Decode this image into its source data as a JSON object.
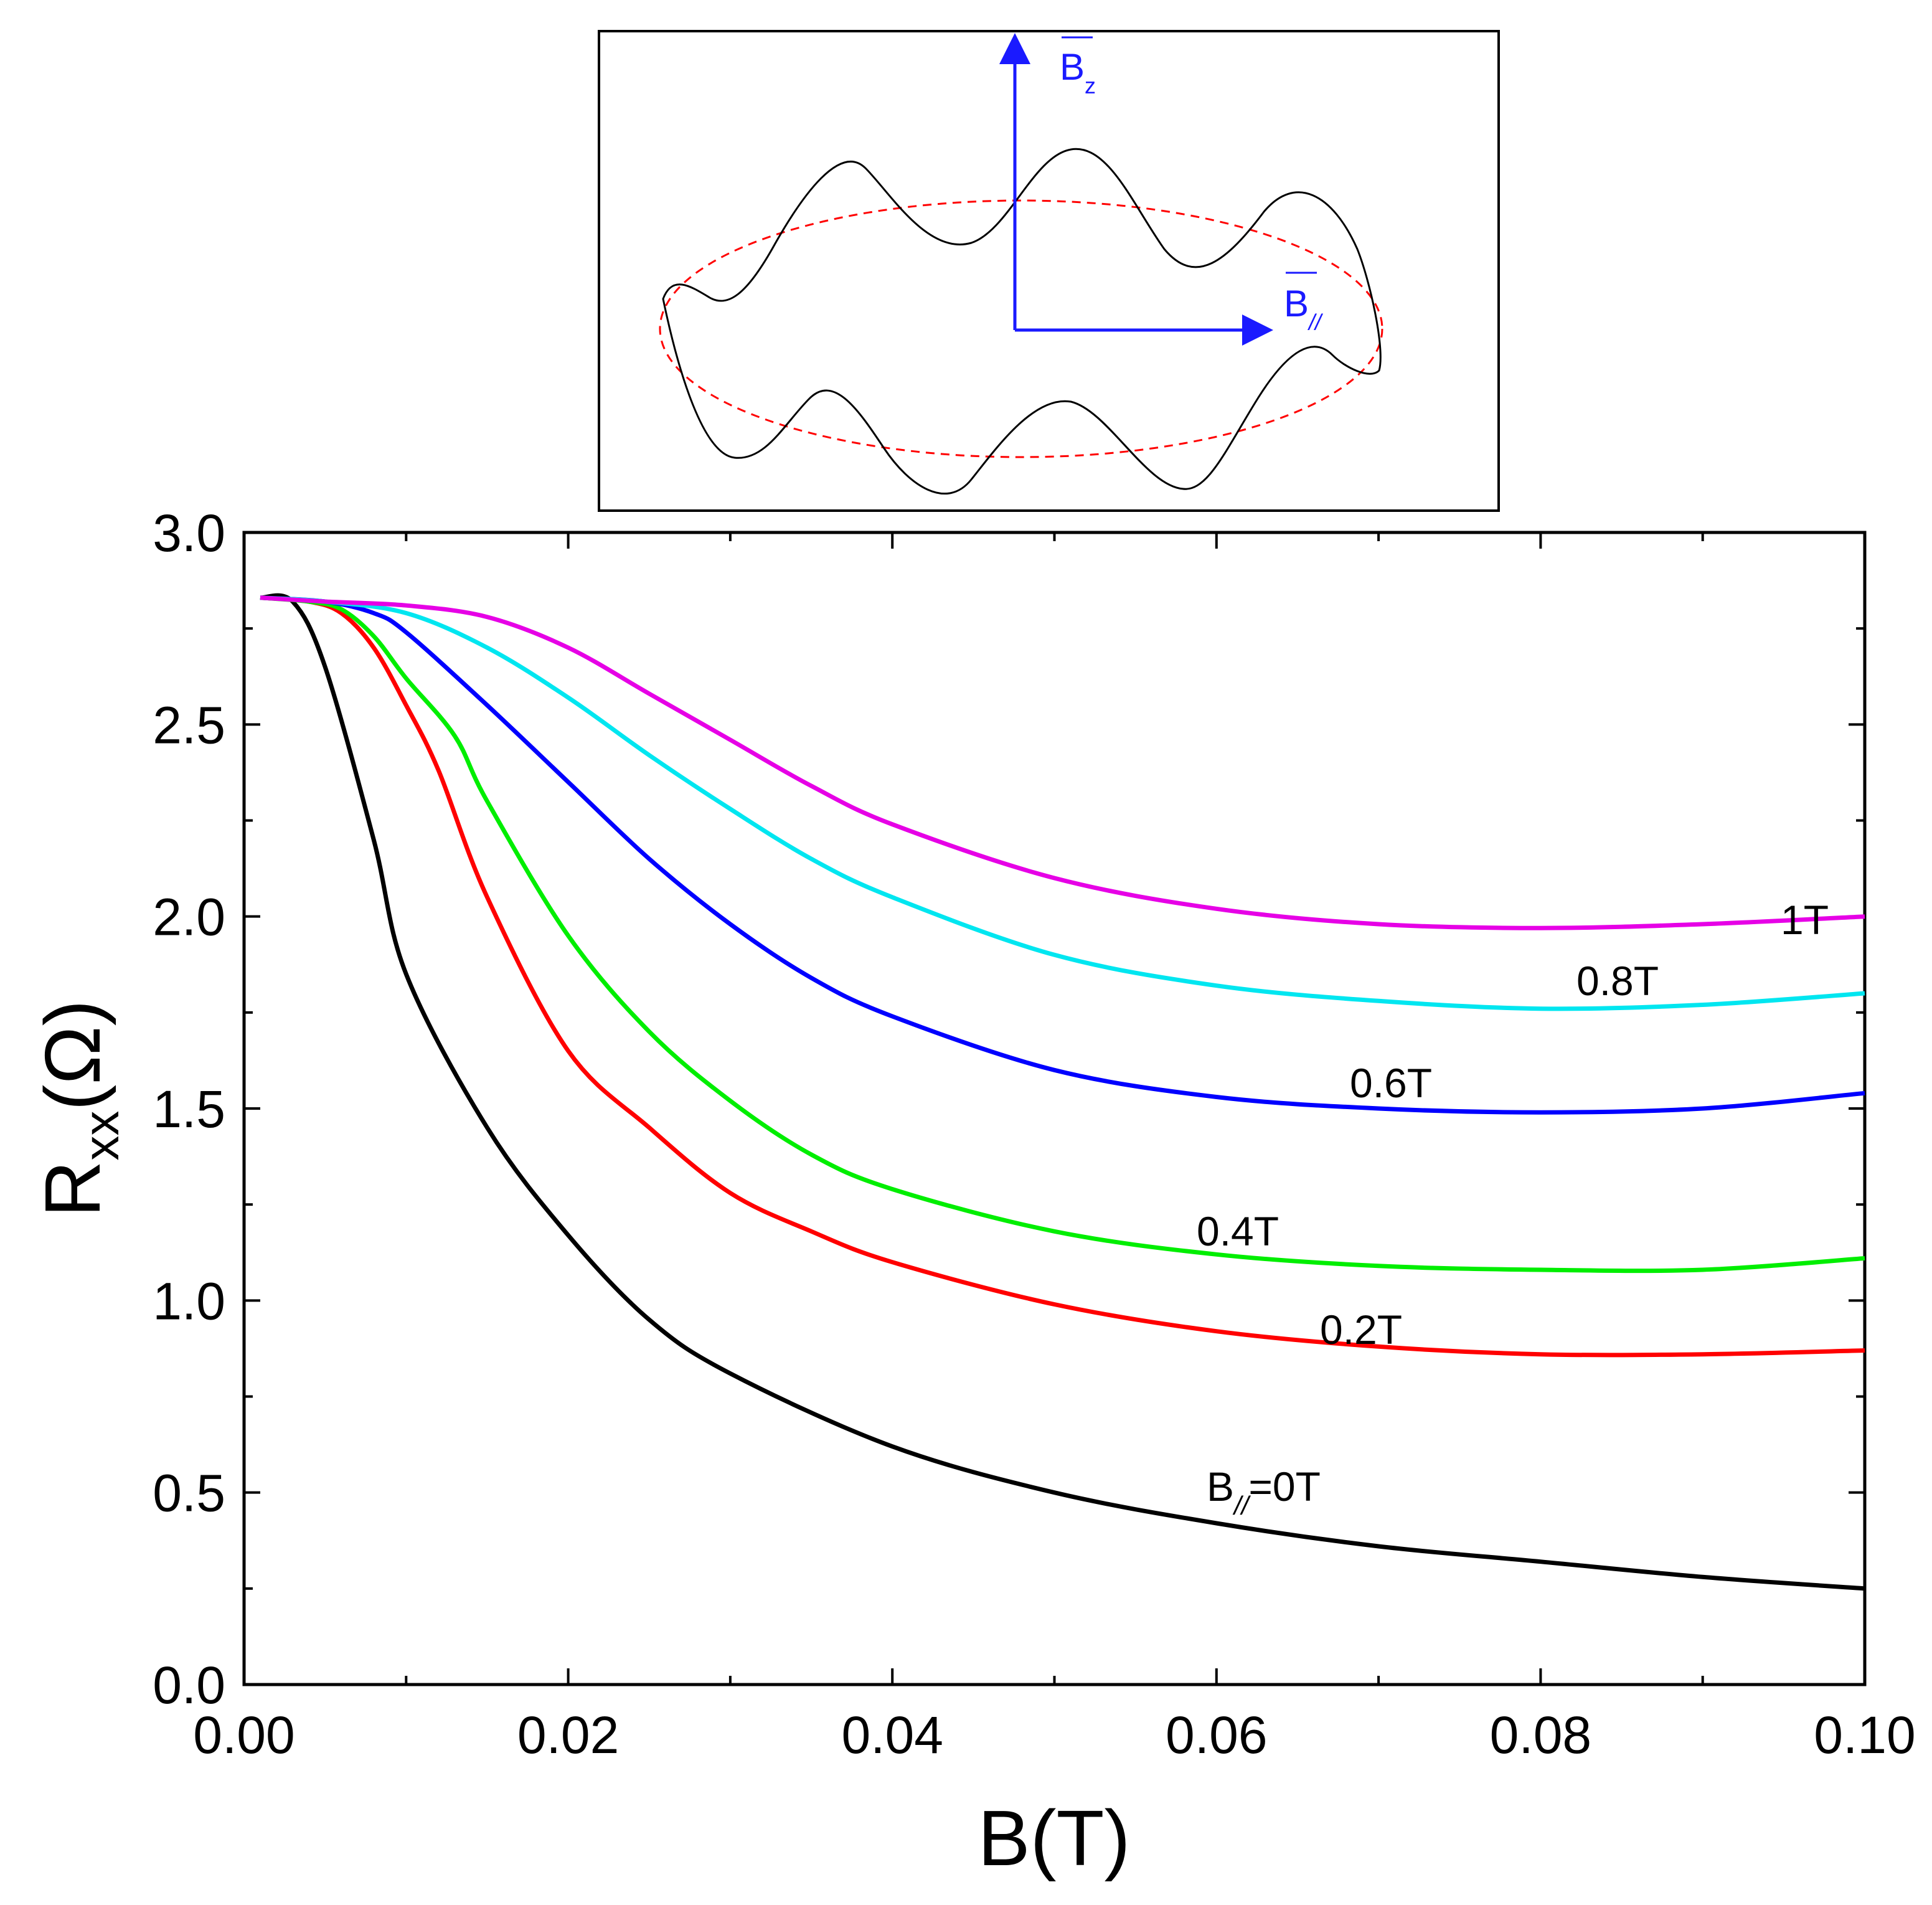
{
  "chart_data": {
    "type": "line",
    "title": "",
    "xlabel": "B(T)",
    "ylabel_main": "R",
    "ylabel_sub": "xx",
    "ylabel_unit": "(Ω)",
    "xlim": [
      0.0,
      0.1
    ],
    "ylim": [
      0.0,
      3.0
    ],
    "x_ticks": [
      "0.00",
      "0.02",
      "0.04",
      "0.06",
      "0.08",
      "0.10"
    ],
    "y_ticks": [
      "0.0",
      "0.5",
      "1.0",
      "1.5",
      "2.0",
      "2.5",
      "3.0"
    ],
    "grid": false,
    "series": [
      {
        "name": "B//=0T",
        "label_main": "B",
        "label_sub": "//",
        "label_rest": "=0T",
        "color": "#000000",
        "x": [
          0.001,
          0.003,
          0.005,
          0.008,
          0.01,
          0.015,
          0.02,
          0.025,
          0.03,
          0.04,
          0.05,
          0.06,
          0.07,
          0.08,
          0.09,
          0.1
        ],
        "y": [
          2.83,
          2.82,
          2.65,
          2.2,
          1.85,
          1.45,
          1.17,
          0.95,
          0.81,
          0.62,
          0.5,
          0.42,
          0.36,
          0.32,
          0.28,
          0.25
        ]
      },
      {
        "name": "0.2T",
        "color": "#ff0000",
        "x": [
          0.001,
          0.004,
          0.006,
          0.008,
          0.01,
          0.012,
          0.015,
          0.02,
          0.025,
          0.03,
          0.035,
          0.04,
          0.05,
          0.06,
          0.07,
          0.08,
          0.09,
          0.1
        ],
        "y": [
          2.83,
          2.82,
          2.79,
          2.7,
          2.55,
          2.38,
          2.05,
          1.65,
          1.45,
          1.28,
          1.18,
          1.1,
          0.99,
          0.92,
          0.88,
          0.86,
          0.86,
          0.87
        ]
      },
      {
        "name": "0.4T",
        "color": "#00ee00",
        "x": [
          0.001,
          0.004,
          0.006,
          0.008,
          0.01,
          0.013,
          0.015,
          0.02,
          0.025,
          0.03,
          0.035,
          0.04,
          0.05,
          0.06,
          0.07,
          0.08,
          0.09,
          0.1
        ],
        "y": [
          2.83,
          2.82,
          2.8,
          2.73,
          2.62,
          2.47,
          2.3,
          1.95,
          1.7,
          1.52,
          1.38,
          1.29,
          1.18,
          1.12,
          1.09,
          1.08,
          1.08,
          1.11
        ]
      },
      {
        "name": "0.6T",
        "color": "#0000ff",
        "x": [
          0.001,
          0.005,
          0.008,
          0.01,
          0.015,
          0.02,
          0.025,
          0.03,
          0.035,
          0.04,
          0.05,
          0.06,
          0.07,
          0.08,
          0.09,
          0.1
        ],
        "y": [
          2.83,
          2.82,
          2.79,
          2.74,
          2.55,
          2.35,
          2.15,
          1.98,
          1.84,
          1.74,
          1.6,
          1.53,
          1.5,
          1.49,
          1.5,
          1.54
        ]
      },
      {
        "name": "0.8T",
        "color": "#00e6f0",
        "x": [
          0.001,
          0.005,
          0.01,
          0.015,
          0.02,
          0.025,
          0.03,
          0.035,
          0.04,
          0.05,
          0.06,
          0.07,
          0.08,
          0.09,
          0.1
        ],
        "y": [
          2.83,
          2.82,
          2.79,
          2.7,
          2.57,
          2.42,
          2.28,
          2.15,
          2.05,
          1.9,
          1.82,
          1.78,
          1.76,
          1.77,
          1.8
        ]
      },
      {
        "name": "1T",
        "color": "#e600e6",
        "x": [
          0.001,
          0.005,
          0.01,
          0.015,
          0.02,
          0.025,
          0.03,
          0.035,
          0.04,
          0.05,
          0.06,
          0.07,
          0.08,
          0.09,
          0.1
        ],
        "y": [
          2.83,
          2.82,
          2.81,
          2.78,
          2.7,
          2.58,
          2.46,
          2.34,
          2.24,
          2.1,
          2.02,
          1.98,
          1.97,
          1.98,
          2.0
        ]
      }
    ],
    "inset": {
      "bz_main": "B",
      "bz_sub": "z",
      "bpar_main": "B",
      "bpar_sub": "//",
      "arrow_color": "#1a1aff",
      "ellipse_color": "#ff0000",
      "wavy_color": "#000000"
    }
  }
}
